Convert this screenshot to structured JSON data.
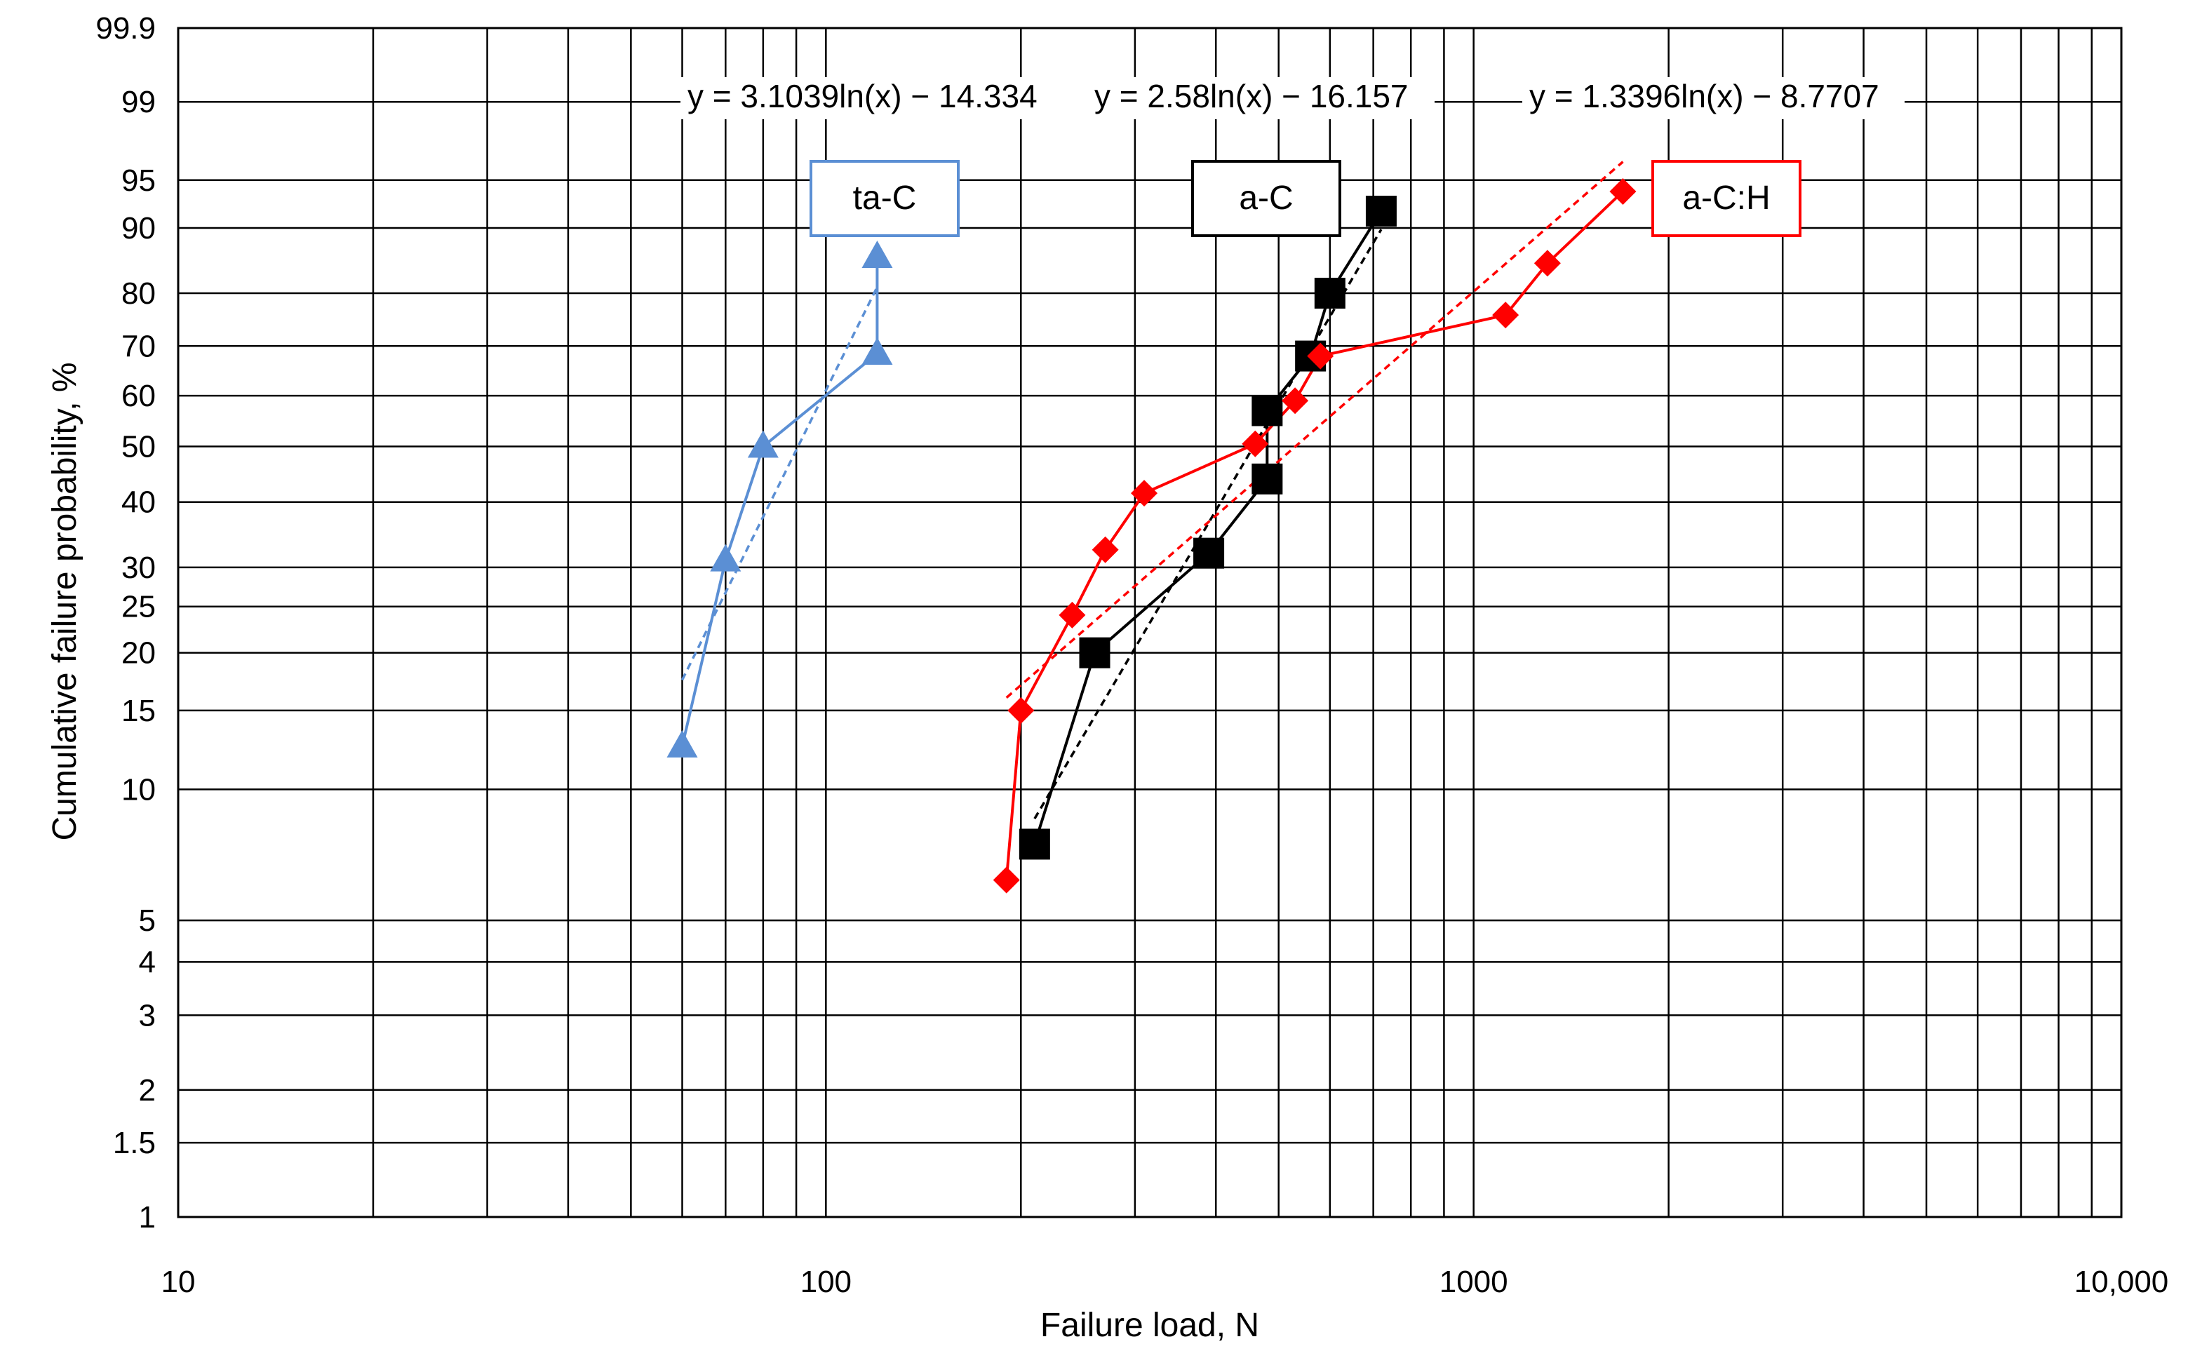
{
  "chart_data": {
    "type": "scatter",
    "xlabel": "Failure load, N",
    "ylabel": "Cumulative failure probability, %",
    "xscale": "log",
    "yscale": "weibull-probability",
    "xlim": [
      10,
      10000
    ],
    "ylim": [
      1,
      99.9
    ],
    "grid": true,
    "x_ticks": [
      10,
      20,
      30,
      40,
      50,
      60,
      70,
      80,
      90,
      100,
      200,
      300,
      400,
      500,
      600,
      700,
      800,
      900,
      1000,
      2000,
      3000,
      4000,
      5000,
      6000,
      7000,
      8000,
      9000,
      10000
    ],
    "x_tick_labels": [
      {
        "value": 10,
        "label": "10"
      },
      {
        "value": 100,
        "label": "100"
      },
      {
        "value": 1000,
        "label": "1000"
      },
      {
        "value": 10000,
        "label": "10,000"
      }
    ],
    "y_ticks": [
      {
        "value": 1,
        "label": "1"
      },
      {
        "value": 1.5,
        "label": "1.5"
      },
      {
        "value": 2,
        "label": "2"
      },
      {
        "value": 3,
        "label": "3"
      },
      {
        "value": 4,
        "label": "4"
      },
      {
        "value": 5,
        "label": "5"
      },
      {
        "value": 10,
        "label": "10"
      },
      {
        "value": 15,
        "label": "15"
      },
      {
        "value": 20,
        "label": "20"
      },
      {
        "value": 25,
        "label": "25"
      },
      {
        "value": 30,
        "label": "30"
      },
      {
        "value": 40,
        "label": "40"
      },
      {
        "value": 50,
        "label": "50"
      },
      {
        "value": 60,
        "label": "60"
      },
      {
        "value": 70,
        "label": "70"
      },
      {
        "value": 80,
        "label": "80"
      },
      {
        "value": 90,
        "label": "90"
      },
      {
        "value": 95,
        "label": "95"
      },
      {
        "value": 99,
        "label": "99"
      },
      {
        "value": 99.9,
        "label": "99.9"
      }
    ],
    "series": [
      {
        "name": "ta-C",
        "color": "#5b8fd4",
        "marker": "triangle",
        "points": [
          [
            60,
            12.5
          ],
          [
            70,
            31
          ],
          [
            80,
            50
          ],
          [
            120,
            68.5
          ],
          [
            120,
            86
          ]
        ],
        "trendline": {
          "equation": "y = 3.1039ln(x) − 14.334",
          "x_range": [
            60,
            120
          ]
        }
      },
      {
        "name": "a-C",
        "color": "#000000",
        "marker": "square",
        "points": [
          [
            210,
            7.5
          ],
          [
            260,
            20
          ],
          [
            390,
            32
          ],
          [
            480,
            44
          ],
          [
            480,
            57
          ],
          [
            560,
            68
          ],
          [
            600,
            80
          ],
          [
            720,
            92
          ]
        ],
        "trendline": {
          "equation": "y = 2.58ln(x) − 16.157",
          "x_range": [
            210,
            720
          ]
        }
      },
      {
        "name": "a-C:H",
        "color": "#ff0000",
        "marker": "diamond",
        "points": [
          [
            190,
            6.2
          ],
          [
            200,
            15
          ],
          [
            240,
            24
          ],
          [
            270,
            32.5
          ],
          [
            310,
            41.5
          ],
          [
            460,
            50.5
          ],
          [
            530,
            59
          ],
          [
            580,
            68
          ],
          [
            1120,
            76
          ],
          [
            1300,
            85
          ],
          [
            1700,
            94
          ]
        ],
        "trendline": {
          "equation": "y = 1.3396ln(x) − 8.7707",
          "x_range": [
            190,
            1700
          ]
        }
      }
    ]
  }
}
